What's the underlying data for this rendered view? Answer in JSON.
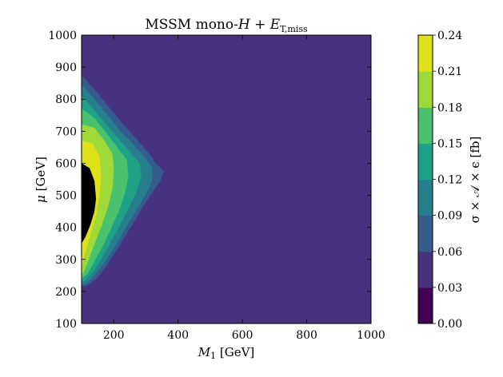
{
  "chart_data": {
    "type": "contour",
    "title": {
      "prefix": "MSSM mono-",
      "H": "H",
      "mid": " + ",
      "E": "E",
      "sub": "T,miss"
    },
    "xlabel": {
      "sym": "M",
      "sub": "1",
      "unit": " [GeV]"
    },
    "ylabel": {
      "sym": "μ",
      "unit": " [GeV]"
    },
    "colorbar_label": "σ × 𝒜 × ϵ [fb]",
    "xlim": [
      100,
      1000
    ],
    "ylim": [
      100,
      1000
    ],
    "xticks": [
      "200",
      "400",
      "600",
      "800",
      "1000"
    ],
    "yticks": [
      "100",
      "200",
      "300",
      "400",
      "500",
      "600",
      "700",
      "800",
      "900",
      "1000"
    ],
    "levels": [
      "0.00",
      "0.03",
      "0.06",
      "0.09",
      "0.12",
      "0.15",
      "0.18",
      "0.21",
      "0.24"
    ],
    "level_colors": [
      "#440154",
      "#46327e",
      "#365c8d",
      "#277f8e",
      "#1fa187",
      "#4ac16d",
      "#a0da39",
      "#dde318"
    ],
    "regions": [
      {
        "level": "0.03",
        "points": [
          [
            100,
            1000
          ],
          [
            1000,
            1000
          ],
          [
            1000,
            100
          ],
          [
            100,
            100
          ]
        ]
      },
      {
        "level": "0.03",
        "points": [
          [
            260,
            100
          ],
          [
            300,
            145
          ],
          [
            340,
            180
          ],
          [
            400,
            210
          ],
          [
            450,
            225
          ],
          [
            510,
            245
          ],
          [
            560,
            240
          ],
          [
            610,
            220
          ],
          [
            650,
            185
          ],
          [
            670,
            150
          ],
          [
            680,
            120
          ],
          [
            675,
            100
          ]
        ]
      },
      {
        "level": "0.06",
        "points": [
          [
            100,
            875
          ],
          [
            140,
            830
          ],
          [
            180,
            780
          ],
          [
            230,
            720
          ],
          [
            275,
            670
          ],
          [
            310,
            630
          ],
          [
            330,
            600
          ],
          [
            355,
            575
          ],
          [
            345,
            545
          ],
          [
            320,
            510
          ],
          [
            290,
            465
          ],
          [
            255,
            405
          ],
          [
            215,
            340
          ],
          [
            180,
            285
          ],
          [
            150,
            245
          ],
          [
            120,
            220
          ],
          [
            100,
            215
          ]
        ]
      },
      {
        "level": "0.09",
        "points": [
          [
            100,
            845
          ],
          [
            140,
            800
          ],
          [
            180,
            750
          ],
          [
            220,
            700
          ],
          [
            260,
            660
          ],
          [
            290,
            625
          ],
          [
            320,
            585
          ],
          [
            318,
            545
          ],
          [
            300,
            505
          ],
          [
            270,
            455
          ],
          [
            235,
            395
          ],
          [
            200,
            335
          ],
          [
            170,
            290
          ],
          [
            140,
            250
          ],
          [
            115,
            225
          ],
          [
            100,
            222
          ]
        ]
      },
      {
        "level": "0.12",
        "points": [
          [
            100,
            810
          ],
          [
            140,
            765
          ],
          [
            180,
            715
          ],
          [
            220,
            670
          ],
          [
            250,
            635
          ],
          [
            280,
            600
          ],
          [
            285,
            560
          ],
          [
            270,
            510
          ],
          [
            245,
            460
          ],
          [
            215,
            400
          ],
          [
            185,
            345
          ],
          [
            160,
            300
          ],
          [
            135,
            260
          ],
          [
            112,
            235
          ],
          [
            100,
            230
          ]
        ]
      },
      {
        "level": "0.15",
        "points": [
          [
            100,
            770
          ],
          [
            140,
            740
          ],
          [
            180,
            690
          ],
          [
            210,
            650
          ],
          [
            240,
            610
          ],
          [
            245,
            560
          ],
          [
            235,
            510
          ],
          [
            215,
            450
          ],
          [
            190,
            395
          ],
          [
            165,
            340
          ],
          [
            140,
            295
          ],
          [
            118,
            255
          ],
          [
            100,
            240
          ]
        ]
      },
      {
        "level": "0.18",
        "points": [
          [
            100,
            720
          ],
          [
            140,
            710
          ],
          [
            170,
            670
          ],
          [
            195,
            630
          ],
          [
            200,
            580
          ],
          [
            195,
            520
          ],
          [
            180,
            460
          ],
          [
            160,
            400
          ],
          [
            140,
            350
          ],
          [
            122,
            300
          ],
          [
            108,
            265
          ],
          [
            100,
            250
          ]
        ]
      },
      {
        "level": "0.21",
        "points": [
          [
            100,
            670
          ],
          [
            135,
            660
          ],
          [
            155,
            620
          ],
          [
            160,
            560
          ],
          [
            155,
            500
          ],
          [
            145,
            440
          ],
          [
            130,
            390
          ],
          [
            118,
            345
          ],
          [
            105,
            300
          ],
          [
            100,
            285
          ]
        ]
      },
      {
        "level": "0.24",
        "points": [
          [
            100,
            600
          ],
          [
            125,
            585
          ],
          [
            140,
            545
          ],
          [
            145,
            490
          ],
          [
            140,
            450
          ],
          [
            128,
            410
          ],
          [
            112,
            370
          ],
          [
            100,
            350
          ]
        ]
      }
    ]
  }
}
